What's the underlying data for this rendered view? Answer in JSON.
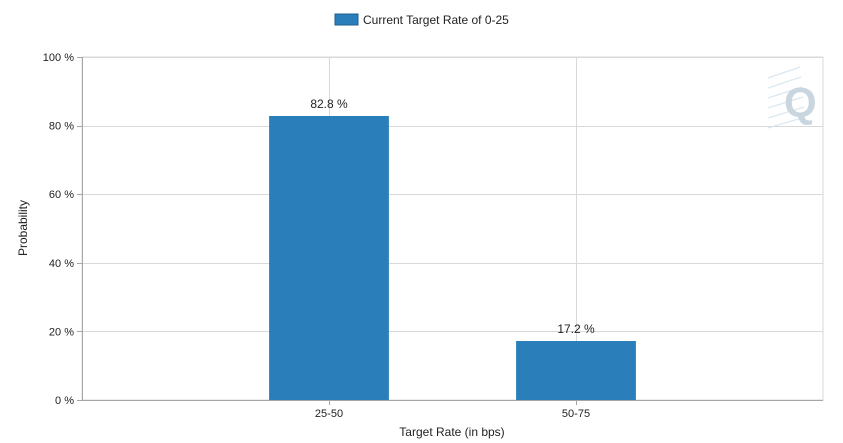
{
  "chart_data": {
    "type": "bar",
    "title": "",
    "legend": {
      "placement": "top-center",
      "entries": [
        "Current Target Rate of 0-25"
      ]
    },
    "categories": [
      "25-50",
      "50-75"
    ],
    "series": [
      {
        "name": "Current Target Rate of 0-25",
        "values": [
          82.8,
          17.2
        ],
        "value_labels": [
          "82.8 %",
          "17.2 %"
        ],
        "color": "#2a7fba"
      }
    ],
    "xlabel": "Target Rate (in bps)",
    "ylabel": "Probability",
    "ylim": [
      0,
      100
    ],
    "yticks": [
      0,
      20,
      40,
      60,
      80,
      100
    ],
    "ytick_labels": [
      "0 %",
      "20 %",
      "40 %",
      "60 %",
      "80 %",
      "100 %"
    ],
    "category_slots": 3,
    "category_slot_indices": [
      1,
      2
    ],
    "grid": true,
    "colors": {
      "grid": "#d9d9d9",
      "axis": "#a6a6a6",
      "watermark": "#b9c9d5"
    },
    "watermark_icon": "q-logo-icon",
    "watermark_text": "Q"
  }
}
